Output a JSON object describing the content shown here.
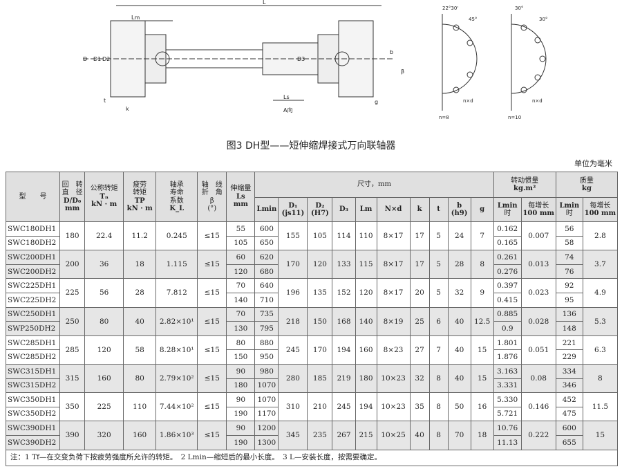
{
  "figure": {
    "title": "图3  DH型——短伸缩焊接式万向联轴器",
    "labels": {
      "L": "L",
      "Lm": "Lm",
      "D": "D",
      "D1": "D1",
      "D2": "D2",
      "D3": "D3",
      "Ls": "Ls",
      "A": "A向",
      "t": "t",
      "k": "k",
      "g": "g",
      "b": "b",
      "beta": "β",
      "angle1": "22°30'",
      "angle2": "45°",
      "angle3": "30°",
      "angle4": "30°",
      "nd": "n×d",
      "n8": "n=8",
      "n10": "n=10"
    }
  },
  "unit": "单位为毫米",
  "header": {
    "model": "型　　号",
    "D": [
      "回　转",
      "直　径",
      "D/D₀",
      "mm"
    ],
    "Tn": [
      "公称转矩",
      "Tₙ",
      "kN · m"
    ],
    "TP": [
      "疲劳",
      "转矩",
      "TP",
      "kN · m"
    ],
    "KL": [
      "轴承",
      "寿命",
      "系数",
      "K_L"
    ],
    "beta": [
      "轴　线",
      "折　角",
      "β",
      "(°)"
    ],
    "Ls": [
      "伸缩量",
      "Ls",
      "mm"
    ],
    "dims": "尺寸，mm",
    "inertia": [
      "转动惯量",
      "kg.m²"
    ],
    "mass": [
      "质量",
      "kg"
    ],
    "Lmin": "Lmin",
    "D1": [
      "D₁",
      "(js11)"
    ],
    "D2": [
      "D₂",
      "(H7)"
    ],
    "D3": "D₃",
    "Lm": "Lm",
    "Nd": "N×d",
    "k": "k",
    "t": "t",
    "b": [
      "b",
      "(h9)"
    ],
    "g": "g",
    "atLmin": [
      "Lmin",
      "时"
    ],
    "per100": [
      "每增长",
      "100 mm"
    ]
  },
  "groups": [
    {
      "models": [
        "SWC180DH1",
        "SWC180DH2"
      ],
      "D": "180",
      "Tn": "22.4",
      "TP": "11.2",
      "KL": "0.245",
      "beta": "≤15",
      "Ls": [
        "55",
        "105"
      ],
      "Lmin": [
        "600",
        "650"
      ],
      "D1": "155",
      "D2": "105",
      "D3": "114",
      "Lm": "110",
      "Nd": "8×17",
      "k": "17",
      "t": "5",
      "b": "24",
      "g": "7",
      "inertia": [
        "0.162",
        "0.165"
      ],
      "inertia_per100": "0.007",
      "mass": [
        "56",
        "58"
      ],
      "mass_per100": "2.8"
    },
    {
      "models": [
        "SWC200DH1",
        "SWC200DH2"
      ],
      "D": "200",
      "Tn": "36",
      "TP": "18",
      "KL": "1.115",
      "beta": "≤15",
      "Ls": [
        "60",
        "120"
      ],
      "Lmin": [
        "620",
        "680"
      ],
      "D1": "170",
      "D2": "120",
      "D3": "133",
      "Lm": "115",
      "Nd": "8×17",
      "k": "17",
      "t": "5",
      "b": "28",
      "g": "8",
      "inertia": [
        "0.261",
        "0.276"
      ],
      "inertia_per100": "0.013",
      "mass": [
        "74",
        "76"
      ],
      "mass_per100": "3.7"
    },
    {
      "models": [
        "SWC225DH1",
        "SWC225DH2"
      ],
      "D": "225",
      "Tn": "56",
      "TP": "28",
      "KL": "7.812",
      "beta": "≤15",
      "Ls": [
        "70",
        "140"
      ],
      "Lmin": [
        "640",
        "710"
      ],
      "D1": "196",
      "D2": "135",
      "D3": "152",
      "Lm": "120",
      "Nd": "8×17",
      "k": "20",
      "t": "5",
      "b": "32",
      "g": "9",
      "inertia": [
        "0.397",
        "0.415"
      ],
      "inertia_per100": "0.023",
      "mass": [
        "92",
        "95"
      ],
      "mass_per100": "4.9"
    },
    {
      "models": [
        "SWC250DH1",
        "SWP250DH2"
      ],
      "D": "250",
      "Tn": "80",
      "TP": "40",
      "KL": "2.82×10¹",
      "beta": "≤15",
      "Ls": [
        "70",
        "130"
      ],
      "Lmin": [
        "735",
        "795"
      ],
      "D1": "218",
      "D2": "150",
      "D3": "168",
      "Lm": "140",
      "Nd": "8×19",
      "k": "25",
      "t": "6",
      "b": "40",
      "g": "12.5",
      "inertia": [
        "0.885",
        "0.9"
      ],
      "inertia_per100": "0.028",
      "mass": [
        "136",
        "148"
      ],
      "mass_per100": "5.3"
    },
    {
      "models": [
        "SWC285DH1",
        "SWC285DH2"
      ],
      "D": "285",
      "Tn": "120",
      "TP": "58",
      "KL": "8.28×10¹",
      "beta": "≤15",
      "Ls": [
        "80",
        "150"
      ],
      "Lmin": [
        "880",
        "950"
      ],
      "D1": "245",
      "D2": "170",
      "D3": "194",
      "Lm": "160",
      "Nd": "8×23",
      "k": "27",
      "t": "7",
      "b": "40",
      "g": "15",
      "inertia": [
        "1.801",
        "1.876"
      ],
      "inertia_per100": "0.051",
      "mass": [
        "221",
        "229"
      ],
      "mass_per100": "6.3"
    },
    {
      "models": [
        "SWC315DH1",
        "SWC315DH2"
      ],
      "D": "315",
      "Tn": "160",
      "TP": "80",
      "KL": "2.79×10²",
      "beta": "≤15",
      "Ls": [
        "90",
        "180"
      ],
      "Lmin": [
        "980",
        "1070"
      ],
      "D1": "280",
      "D2": "185",
      "D3": "219",
      "Lm": "180",
      "Nd": "10×23",
      "k": "32",
      "t": "8",
      "b": "40",
      "g": "15",
      "inertia": [
        "3.163",
        "3.331"
      ],
      "inertia_per100": "0.08",
      "mass": [
        "334",
        "346"
      ],
      "mass_per100": "8"
    },
    {
      "models": [
        "SWC350DH1",
        "SWC350DH2"
      ],
      "D": "350",
      "Tn": "225",
      "TP": "110",
      "KL": "7.44×10²",
      "beta": "≤15",
      "Ls": [
        "90",
        "190"
      ],
      "Lmin": [
        "1070",
        "1170"
      ],
      "D1": "310",
      "D2": "210",
      "D3": "245",
      "Lm": "194",
      "Nd": "10×23",
      "k": "35",
      "t": "8",
      "b": "50",
      "g": "16",
      "inertia": [
        "5.330",
        "5.721"
      ],
      "inertia_per100": "0.146",
      "mass": [
        "452",
        "475"
      ],
      "mass_per100": "11.5"
    },
    {
      "models": [
        "SWC390DH1",
        "SWC390DH2"
      ],
      "D": "390",
      "Tn": "320",
      "TP": "160",
      "KL": "1.86×10³",
      "beta": "≤15",
      "Ls": [
        "90",
        "190"
      ],
      "Lmin": [
        "1200",
        "1300"
      ],
      "D1": "345",
      "D2": "235",
      "D3": "267",
      "Lm": "215",
      "Nd": "10×25",
      "k": "40",
      "t": "8",
      "b": "70",
      "g": "18",
      "inertia": [
        "10.76",
        "11.13"
      ],
      "inertia_per100": "0.222",
      "mass": [
        "600",
        "655"
      ],
      "mass_per100": "15"
    }
  ],
  "note": "注：1 Tf—在交变负荷下按疲劳强度所允许的转矩。　2 Lmin—缩短后的最小长度。　3 L—安装长度，按需要确定。"
}
